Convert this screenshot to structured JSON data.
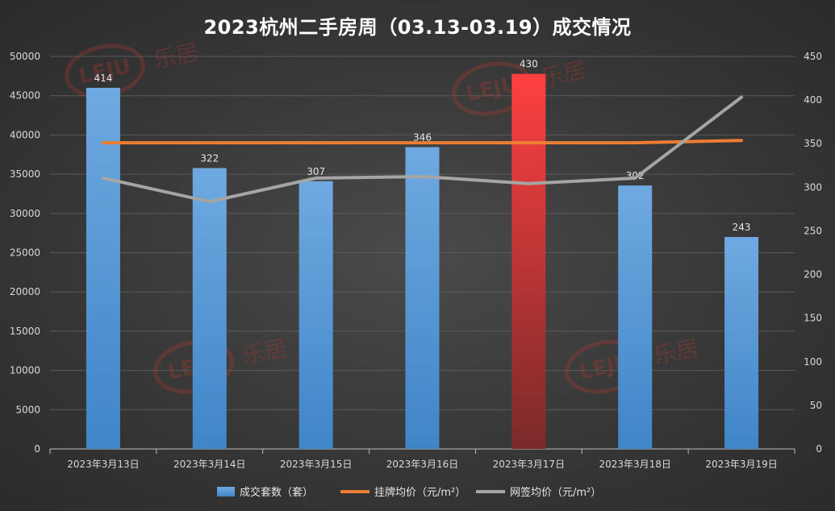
{
  "title": "2023杭州二手房周（03.13-03.19）成交情况",
  "watermark": "乐居",
  "colors": {
    "bar": "#5b9bd5",
    "bar_highlight": "#ff4040",
    "listing_line": "#ed7d31",
    "signed_line": "#a5a5a5"
  },
  "chart_data": {
    "type": "bar",
    "title": "2023杭州二手房周（03.13-03.19）成交情况",
    "categories": [
      "2023年3月13日",
      "2023年3月14日",
      "2023年3月15日",
      "2023年3月16日",
      "2023年3月17日",
      "2023年3月18日",
      "2023年3月19日"
    ],
    "y_left": {
      "min": 0,
      "max": 50000,
      "step": 5000
    },
    "y_right": {
      "min": 0,
      "max": 450,
      "step": 50
    },
    "highlight_index": 4,
    "legend_position": "bottom",
    "grid": true,
    "series": [
      {
        "name": "成交套数（套）",
        "type": "bar",
        "axis": "right",
        "values": [
          414,
          322,
          307,
          346,
          430,
          302,
          243
        ],
        "data_labels": [
          "414",
          "322",
          "307",
          "346",
          "430",
          "302",
          "243"
        ]
      },
      {
        "name": "挂牌均价（元/m²）",
        "type": "line",
        "axis": "left",
        "values": [
          39000,
          39000,
          39000,
          39000,
          39000,
          39000,
          39300
        ]
      },
      {
        "name": "网签均价（元/m²）",
        "type": "line",
        "axis": "left",
        "values": [
          34500,
          31500,
          34500,
          34700,
          33800,
          34500,
          44800
        ]
      }
    ]
  }
}
